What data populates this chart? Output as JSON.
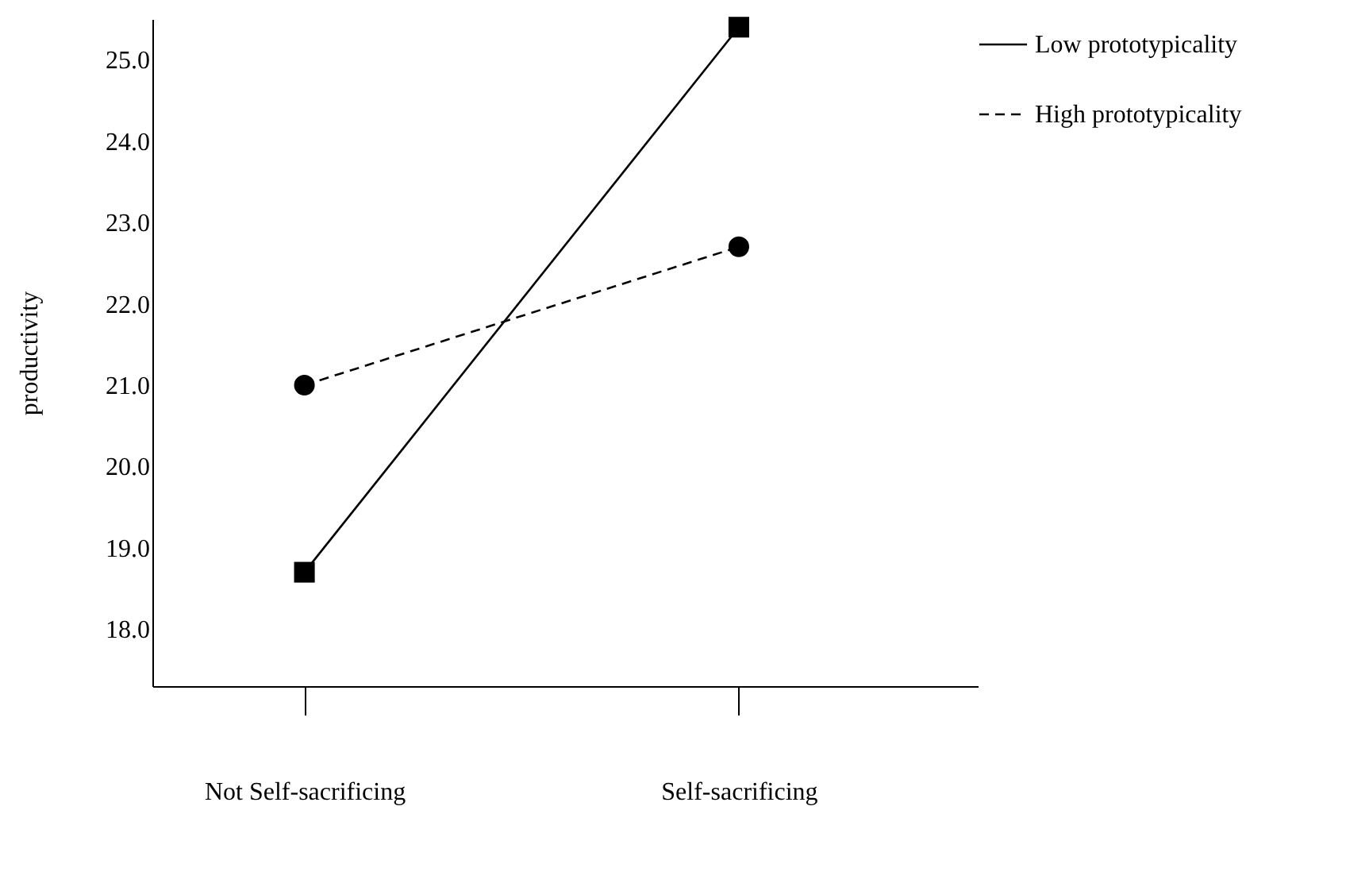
{
  "chart_data": {
    "type": "line",
    "ylabel": "productivity",
    "categories": [
      "Not Self-sacrificing",
      "Self-sacrificing"
    ],
    "series": [
      {
        "name": "Low prototypicality",
        "color": "#000000",
        "values": [
          18.7,
          25.4
        ],
        "marker": "square",
        "line_style": "solid"
      },
      {
        "name": "High prototypicality",
        "color": "#000000",
        "values": [
          21.0,
          22.7
        ],
        "marker": "circle",
        "line_style": "dashed"
      }
    ],
    "ylim": [
      17.3,
      25.5
    ],
    "yticks": [
      {
        "value": 18,
        "label": "18.0"
      },
      {
        "value": 19,
        "label": "19.0"
      },
      {
        "value": 20,
        "label": "20.0"
      },
      {
        "value": 21,
        "label": "21.0"
      },
      {
        "value": 22,
        "label": "22.0"
      },
      {
        "value": 23,
        "label": "23.0"
      },
      {
        "value": 24,
        "label": "24.0"
      },
      {
        "value": 25,
        "label": "25.0"
      }
    ],
    "grid": false,
    "legend": "right"
  }
}
